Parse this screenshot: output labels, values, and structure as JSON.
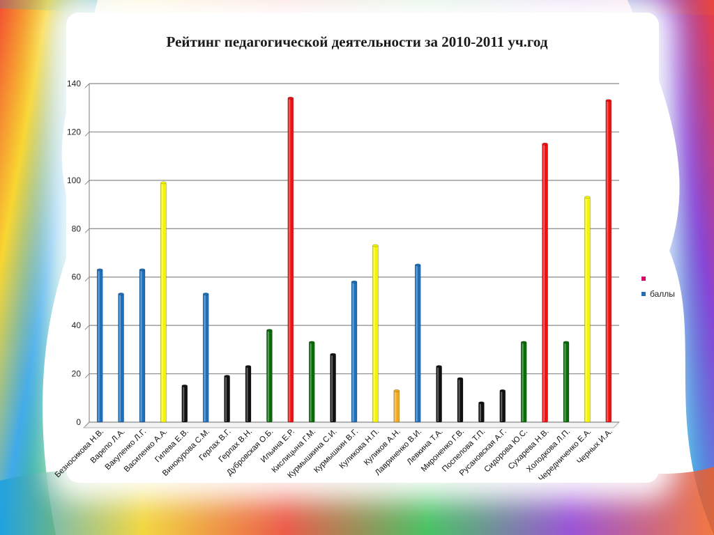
{
  "slide": {
    "title": "Рейтинг педагогической деятельности за 2010-2011 уч.год"
  },
  "colors": {
    "blue": "#1f6fb8",
    "yellow": "#f4f400",
    "black": "#111111",
    "green": "#0b6b0b",
    "red": "#ee1111",
    "orange": "#f2a81c",
    "legend_magenta": "#cc0066"
  },
  "legend": {
    "items": [
      {
        "label": "",
        "color": "#cc0066"
      },
      {
        "label": "баллы",
        "color": "#1f6fb8"
      }
    ]
  },
  "chart_data": {
    "type": "bar",
    "title": "Рейтинг педагогической деятельности за 2010-2011 уч.год",
    "xlabel": "",
    "ylabel": "",
    "ylim": [
      0,
      140
    ],
    "yticks": [
      "0",
      "20",
      "40",
      "60",
      "80",
      "100",
      "120",
      "140"
    ],
    "grid": true,
    "legend_position": "right",
    "categories": [
      "Безносикова Н.В.",
      "Варепо Л.А.",
      "Вакуленко Л.Г.",
      "Василенко А.А.",
      "Гилева Е.В.",
      "Винокурова С.М.",
      "Герлах В.Г.",
      "Герлах В.Н.",
      "Дубровская О.Б.",
      "Ильина Е.Р.",
      "Кислицына Г.М.",
      "Курмышкина С.И.",
      "Курмышкин В.Г.",
      "Куликова Н.П.",
      "Куликов А.Н.",
      "Лавриненко В.И.",
      "Левкина Т.А.",
      "Мироненко Г.В.",
      "Поспелова Т.П.",
      "Русановская А.Г.",
      "Сидорова Ю.С.",
      "Сухарева Н.В.",
      "Холодкова Л.П.",
      "Чередниченко Е.А.",
      "Черных И.А."
    ],
    "series": [
      {
        "name": "баллы",
        "values": [
          63,
          53,
          63,
          99,
          15,
          53,
          19,
          23,
          38,
          134,
          33,
          28,
          58,
          73,
          13,
          65,
          23,
          18,
          8,
          13,
          33,
          115,
          33,
          93,
          133
        ],
        "bar_colors": [
          "#1f6fb8",
          "#1f6fb8",
          "#1f6fb8",
          "#f4f400",
          "#111111",
          "#1f6fb8",
          "#111111",
          "#111111",
          "#0b6b0b",
          "#ee1111",
          "#0b6b0b",
          "#111111",
          "#1f6fb8",
          "#f4f400",
          "#f2a81c",
          "#1f6fb8",
          "#111111",
          "#111111",
          "#111111",
          "#111111",
          "#0b6b0b",
          "#ee1111",
          "#0b6b0b",
          "#f4f400",
          "#ee1111"
        ]
      }
    ]
  }
}
